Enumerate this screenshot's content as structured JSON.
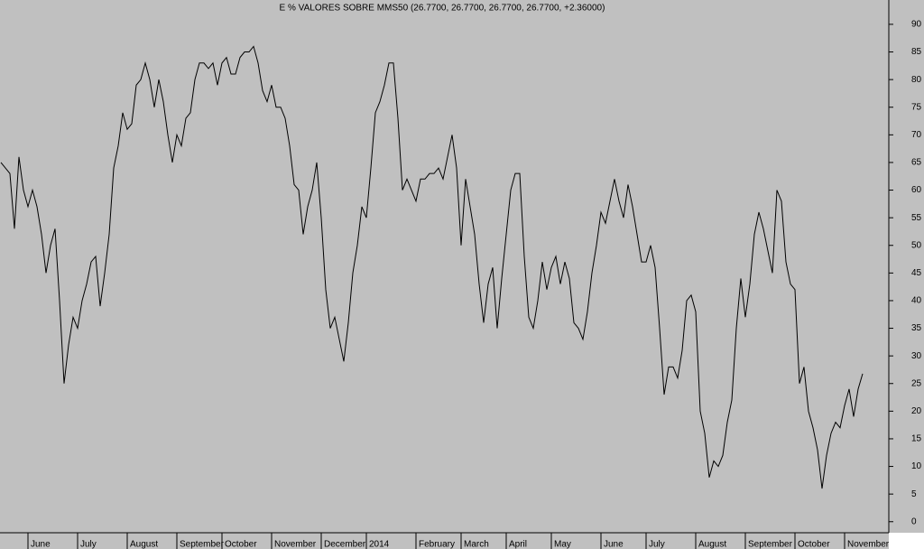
{
  "chart_data": {
    "type": "line",
    "title": "E % VALORES SOBRE MMS50 (26.7700, 26.7700, 26.7700, 26.7700, +2.36000)",
    "categories": [
      null,
      null,
      null,
      null,
      null,
      null,
      "June",
      null,
      null,
      null,
      null,
      null,
      null,
      null,
      null,
      null,
      null,
      "July",
      null,
      null,
      null,
      null,
      null,
      null,
      null,
      null,
      null,
      null,
      "August",
      null,
      null,
      null,
      null,
      null,
      null,
      null,
      null,
      null,
      null,
      "September",
      null,
      null,
      null,
      null,
      null,
      null,
      null,
      null,
      null,
      "October",
      null,
      null,
      null,
      null,
      null,
      null,
      null,
      null,
      null,
      null,
      "November",
      null,
      null,
      null,
      null,
      null,
      null,
      null,
      null,
      null,
      null,
      "December",
      null,
      null,
      null,
      null,
      null,
      null,
      null,
      null,
      null,
      "2014",
      null,
      null,
      null,
      null,
      null,
      null,
      null,
      null,
      null,
      null,
      "February",
      null,
      null,
      null,
      null,
      null,
      null,
      null,
      null,
      null,
      "March",
      null,
      null,
      null,
      null,
      null,
      null,
      null,
      null,
      null,
      "April",
      null,
      null,
      null,
      null,
      null,
      null,
      null,
      null,
      null,
      "May",
      null,
      null,
      null,
      null,
      null,
      null,
      null,
      null,
      null,
      null,
      "June",
      null,
      null,
      null,
      null,
      null,
      null,
      null,
      null,
      null,
      "July",
      null,
      null,
      null,
      null,
      null,
      null,
      null,
      null,
      null,
      null,
      "August",
      null,
      null,
      null,
      null,
      null,
      null,
      null,
      null,
      null,
      null,
      "September",
      null,
      null,
      null,
      null,
      null,
      null,
      null,
      null,
      null,
      null,
      "October",
      null,
      null,
      null,
      null,
      null,
      null,
      null,
      null,
      null,
      null,
      "November",
      null,
      null,
      null,
      null
    ],
    "values": [
      65,
      64,
      63,
      53,
      66,
      60,
      57,
      60,
      57,
      52,
      45,
      50,
      53,
      40,
      25,
      32,
      37,
      35,
      40,
      43,
      47,
      48,
      39,
      45,
      52,
      64,
      68,
      74,
      71,
      72,
      79,
      80,
      83,
      80,
      75,
      80,
      76,
      70,
      65,
      70,
      68,
      73,
      74,
      80,
      83,
      83,
      82,
      83,
      79,
      83,
      84,
      81,
      81,
      84,
      85,
      85,
      86,
      83,
      78,
      76,
      79,
      75,
      75,
      73,
      68,
      61,
      60,
      52,
      57,
      60,
      65,
      55,
      42,
      35,
      37,
      33,
      29,
      36,
      45,
      50,
      57,
      55,
      64,
      74,
      76,
      79,
      83,
      83,
      73,
      60,
      62,
      60,
      58,
      62,
      62,
      63,
      63,
      64,
      62,
      66,
      70,
      64,
      50,
      62,
      57,
      52,
      43,
      36,
      43,
      46,
      35,
      44,
      52,
      60,
      63,
      63,
      48,
      37,
      35,
      40,
      47,
      42,
      46,
      48,
      43,
      47,
      44,
      36,
      35,
      33,
      38,
      45,
      50,
      56,
      54,
      58,
      62,
      58,
      55,
      61,
      57,
      52,
      47,
      47,
      50,
      46,
      35,
      23,
      28,
      28,
      26,
      31,
      40,
      41,
      38,
      20,
      16,
      8,
      11,
      10,
      12,
      18,
      22,
      35,
      44,
      37,
      43,
      52,
      56,
      53,
      49,
      45,
      60,
      58,
      47,
      43,
      42,
      25,
      28,
      20,
      17,
      13,
      6,
      12,
      16,
      18,
      17,
      21,
      24,
      19,
      24,
      26.77
    ],
    "color": "#000000",
    "ylim": [
      -2,
      94.4
    ],
    "yticks": [
      0,
      5,
      10,
      15,
      20,
      25,
      30,
      35,
      40,
      45,
      50,
      55,
      60,
      65,
      70,
      75,
      80,
      85,
      90
    ]
  }
}
